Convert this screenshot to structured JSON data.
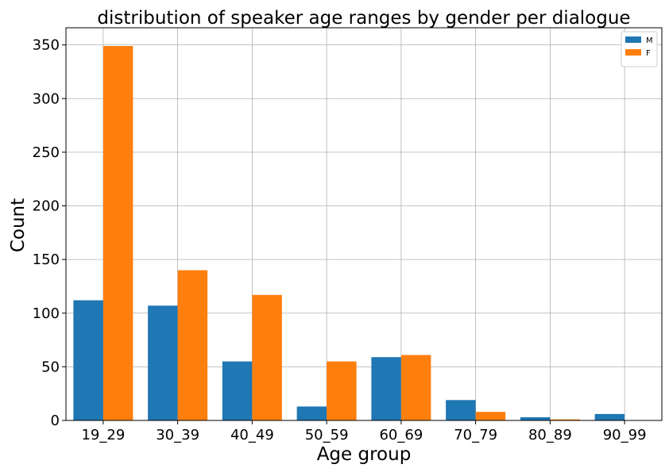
{
  "chart_data": {
    "type": "bar",
    "title": "distribution of speaker age ranges by gender per dialogue",
    "xlabel": "Age group",
    "ylabel": "Count",
    "categories": [
      "19_29",
      "30_39",
      "40_49",
      "50_59",
      "60_69",
      "70_79",
      "80_89",
      "90_99"
    ],
    "series": [
      {
        "name": "M",
        "color": "#1f77b4",
        "values": [
          112,
          107,
          55,
          13,
          59,
          19,
          3,
          6
        ]
      },
      {
        "name": "F",
        "color": "#ff7f0e",
        "values": [
          349,
          140,
          117,
          55,
          61,
          8,
          1,
          0
        ]
      }
    ],
    "ylim": [
      0,
      366
    ],
    "yticks": [
      0,
      50,
      100,
      150,
      200,
      250,
      300,
      350
    ],
    "grid": true,
    "legend_position": "top-right"
  }
}
